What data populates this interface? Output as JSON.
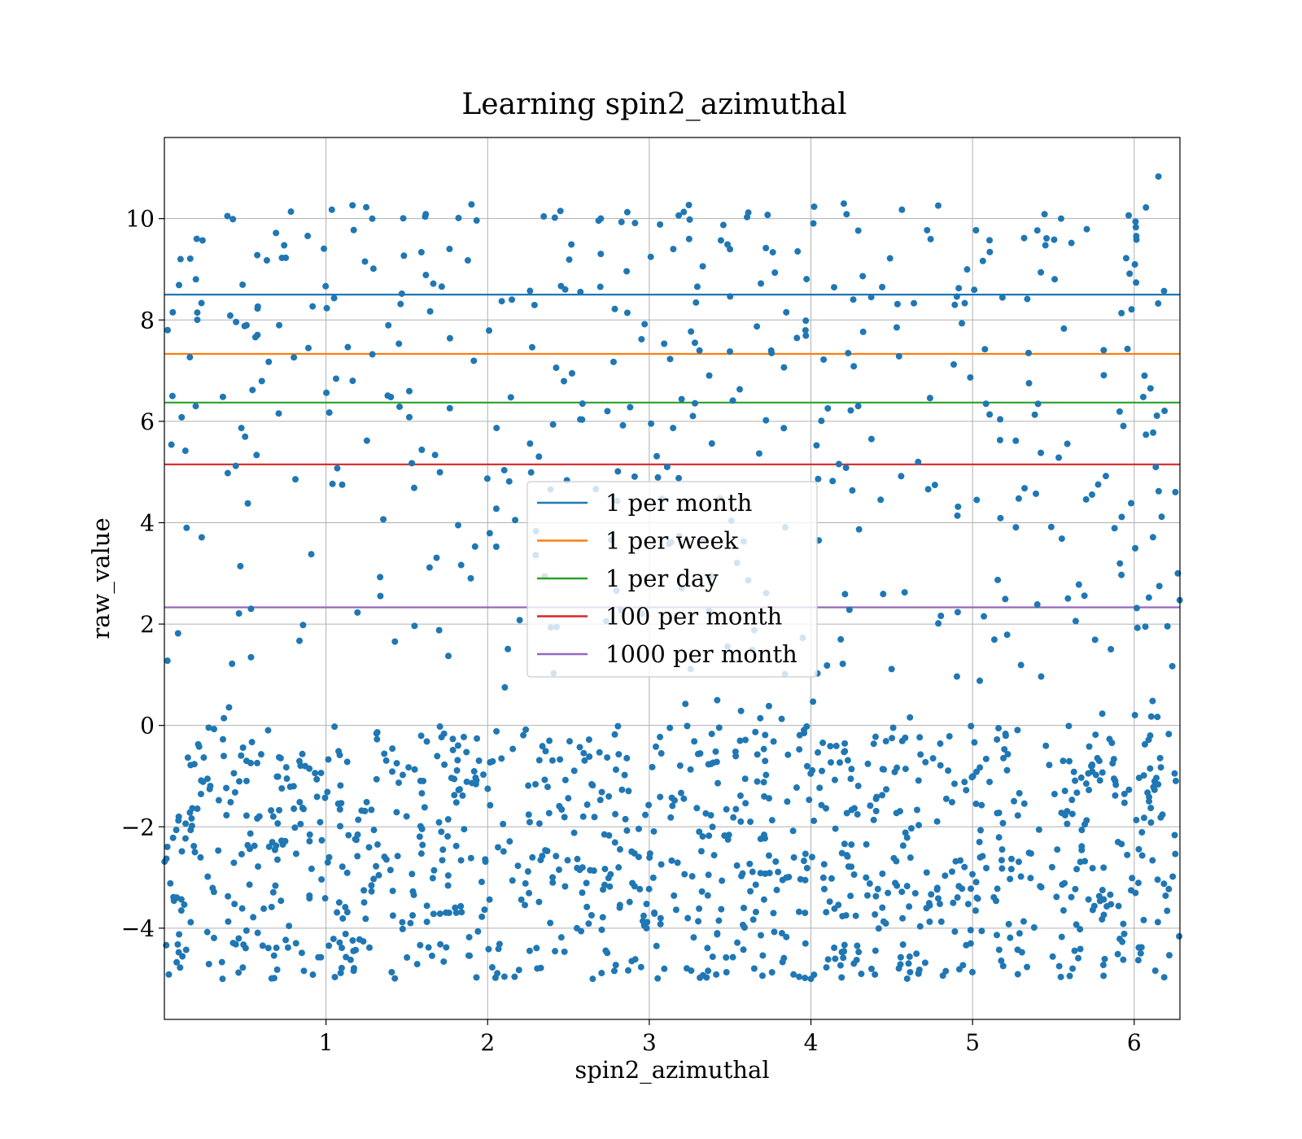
{
  "chart_data": {
    "type": "scatter",
    "title": "Learning spin2_azimuthal",
    "xlabel": "spin2_azimuthal",
    "ylabel": "raw_value",
    "xlim": [
      0.0,
      6.283
    ],
    "ylim": [
      -5.8,
      11.6
    ],
    "xticks": [
      1,
      2,
      3,
      4,
      5,
      6
    ],
    "yticks": [
      -4,
      -2,
      0,
      2,
      4,
      6,
      8,
      10
    ],
    "grid": true,
    "legend_position": "center",
    "point_color": "#1f77b4",
    "point_count": 1500,
    "point_distribution": {
      "x_range": [
        0.0,
        6.283
      ],
      "dense_band_y": [
        -5.0,
        0.0
      ],
      "sparse_band_y": [
        0.0,
        10.8
      ],
      "max_y": 10.83
    },
    "points_sample": [
      {
        "x": 0.02,
        "y": 7.8
      },
      {
        "x": 0.05,
        "y": 6.5
      },
      {
        "x": 0.1,
        "y": 9.2
      },
      {
        "x": 0.2,
        "y": 9.6
      },
      {
        "x": 0.39,
        "y": 10.05
      },
      {
        "x": 1.9,
        "y": 10.28
      },
      {
        "x": 2.45,
        "y": 10.15
      },
      {
        "x": 2.7,
        "y": 10.0
      },
      {
        "x": 3.25,
        "y": 9.98
      },
      {
        "x": 6.15,
        "y": 10.83
      },
      {
        "x": 1.1,
        "y": 4.75
      },
      {
        "x": 6.27,
        "y": 3.0
      },
      {
        "x": 0.36,
        "y": -5.0
      },
      {
        "x": 2.65,
        "y": -5.0
      },
      {
        "x": 4.0,
        "y": -5.0
      }
    ],
    "hlines": [
      {
        "name": "1 per month",
        "y": 8.5,
        "color": "#1f77b4"
      },
      {
        "name": "1 per week",
        "y": 7.33,
        "color": "#ff7f0e"
      },
      {
        "name": "1 per day",
        "y": 6.37,
        "color": "#2ca02c"
      },
      {
        "name": "100 per month",
        "y": 5.15,
        "color": "#d62728"
      },
      {
        "name": "1000 per month",
        "y": 2.33,
        "color": "#9467bd"
      }
    ]
  }
}
